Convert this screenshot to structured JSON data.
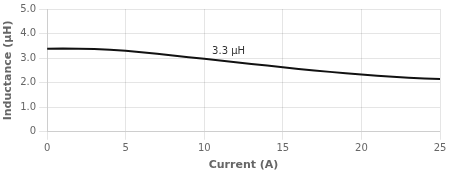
{
  "chart_data": {
    "type": "line",
    "xlabel": "Current (A)",
    "ylabel": "Inductance (μH)",
    "x": [
      0,
      1,
      2,
      3,
      4,
      5,
      6,
      7,
      8,
      9,
      10,
      11,
      12,
      13,
      14,
      15,
      16,
      17,
      18,
      19,
      20,
      21,
      22,
      23,
      24,
      25
    ],
    "values": [
      3.38,
      3.39,
      3.38,
      3.37,
      3.34,
      3.3,
      3.24,
      3.18,
      3.11,
      3.04,
      2.97,
      2.9,
      2.83,
      2.76,
      2.7,
      2.63,
      2.56,
      2.5,
      2.44,
      2.38,
      2.33,
      2.28,
      2.24,
      2.2,
      2.17,
      2.15
    ],
    "color": "#111111",
    "xlim": [
      0,
      25
    ],
    "ylim": [
      0,
      5.0
    ],
    "xticks": [
      0,
      5,
      10,
      15,
      20,
      25
    ],
    "yticks": [
      0,
      {
        "value": 1.0,
        "label": "1.0"
      },
      {
        "value": 2.0,
        "label": "2.0"
      },
      {
        "value": 3.0,
        "label": "3.0"
      },
      {
        "value": 4.0,
        "label": "4.0"
      },
      {
        "value": 5.0,
        "label": "5.0"
      }
    ],
    "annotations": [
      {
        "text": "3.3 μH",
        "x": 10.5,
        "y": 3.05
      }
    ],
    "grid": true
  }
}
